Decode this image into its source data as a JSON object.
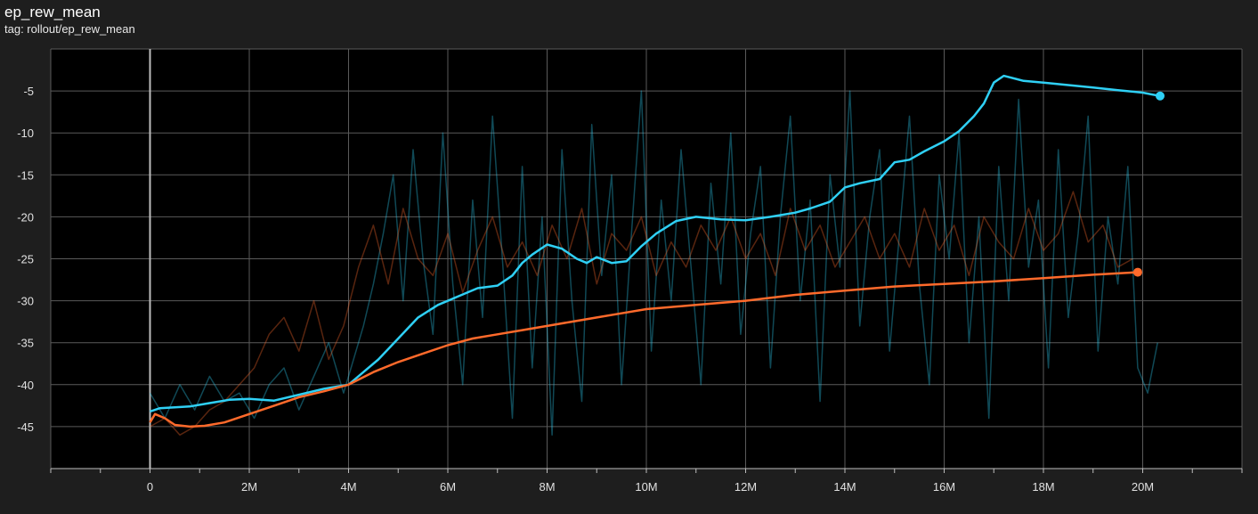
{
  "panel": {
    "title": "ep_rew_mean",
    "tag": "tag: rollout/ep_rew_mean"
  },
  "colors": {
    "background": "#1e1e1e",
    "plot_background": "#000000",
    "grid": "#5a5a5a",
    "series_blue": "#2fd0f5",
    "series_orange": "#ff6a2b"
  },
  "chart_data": {
    "type": "line",
    "title": "ep_rew_mean",
    "xlabel": "",
    "ylabel": "",
    "xlim": [
      -2000000,
      22000000
    ],
    "ylim": [
      -50,
      0
    ],
    "x_ticks": [
      0,
      2000000,
      4000000,
      6000000,
      8000000,
      10000000,
      12000000,
      14000000,
      16000000,
      18000000,
      20000000
    ],
    "x_tick_labels": [
      "0",
      "2M",
      "4M",
      "6M",
      "8M",
      "10M",
      "12M",
      "14M",
      "16M",
      "18M",
      "20M"
    ],
    "y_ticks": [
      -5,
      -10,
      -15,
      -20,
      -25,
      -30,
      -35,
      -40,
      -45
    ],
    "y_tick_labels": [
      "-5",
      "-10",
      "-15",
      "-20",
      "-25",
      "-30",
      "-35",
      "-40",
      "-45"
    ],
    "grid": true,
    "legend": "none",
    "series": [
      {
        "color": "#2fd0f5",
        "smoothed": {
          "x": [
            0,
            200000,
            500000,
            800000,
            1200000,
            1600000,
            2000000,
            2500000,
            3000000,
            3500000,
            4000000,
            4300000,
            4600000,
            5000000,
            5400000,
            5800000,
            6200000,
            6600000,
            7000000,
            7300000,
            7500000,
            7700000,
            8000000,
            8300000,
            8600000,
            8800000,
            9000000,
            9300000,
            9600000,
            9900000,
            10200000,
            10600000,
            11000000,
            11500000,
            12000000,
            12500000,
            13000000,
            13300000,
            13700000,
            14000000,
            14300000,
            14700000,
            15000000,
            15300000,
            15600000,
            16000000,
            16300000,
            16600000,
            16800000,
            17000000,
            17200000,
            17600000,
            18000000,
            18500000,
            19000000,
            19500000,
            20000000,
            20350000
          ],
          "y": [
            -43.2,
            -42.8,
            -42.7,
            -42.6,
            -42.2,
            -41.8,
            -41.7,
            -41.9,
            -41.2,
            -40.5,
            -40.0,
            -38.5,
            -37.0,
            -34.5,
            -32.0,
            -30.5,
            -29.5,
            -28.5,
            -28.2,
            -27.0,
            -25.5,
            -24.5,
            -23.3,
            -23.8,
            -25.0,
            -25.5,
            -24.8,
            -25.5,
            -25.3,
            -23.5,
            -22.0,
            -20.5,
            -20.0,
            -20.3,
            -20.4,
            -20.0,
            -19.5,
            -19.0,
            -18.2,
            -16.5,
            -16.0,
            -15.5,
            -13.5,
            -13.2,
            -12.2,
            -11.0,
            -9.8,
            -8.0,
            -6.5,
            -4.0,
            -3.2,
            -3.8,
            -4.0,
            -4.3,
            -4.6,
            -4.9,
            -5.2,
            -5.6
          ]
        },
        "raw": {
          "x": [
            0,
            300000,
            600000,
            900000,
            1200000,
            1500000,
            1800000,
            2100000,
            2400000,
            2700000,
            3000000,
            3300000,
            3600000,
            3900000,
            4100000,
            4300000,
            4500000,
            4700000,
            4900000,
            5100000,
            5300000,
            5500000,
            5700000,
            5900000,
            6100000,
            6300000,
            6500000,
            6700000,
            6900000,
            7100000,
            7300000,
            7500000,
            7700000,
            7900000,
            8100000,
            8300000,
            8500000,
            8700000,
            8900000,
            9100000,
            9300000,
            9500000,
            9700000,
            9900000,
            10100000,
            10300000,
            10500000,
            10700000,
            10900000,
            11100000,
            11300000,
            11500000,
            11700000,
            11900000,
            12100000,
            12300000,
            12500000,
            12700000,
            12900000,
            13100000,
            13300000,
            13500000,
            13700000,
            13900000,
            14100000,
            14300000,
            14500000,
            14700000,
            14900000,
            15100000,
            15300000,
            15500000,
            15700000,
            15900000,
            16100000,
            16300000,
            16500000,
            16700000,
            16900000,
            17100000,
            17300000,
            17500000,
            17700000,
            17900000,
            18100000,
            18300000,
            18500000,
            18700000,
            18900000,
            19100000,
            19300000,
            19500000,
            19700000,
            19900000,
            20100000,
            20300000
          ],
          "y": [
            -41,
            -44,
            -40,
            -43,
            -39,
            -42,
            -41,
            -44,
            -40,
            -38,
            -43,
            -39,
            -35,
            -41,
            -37,
            -33,
            -28,
            -22,
            -15,
            -30,
            -12,
            -25,
            -34,
            -10,
            -28,
            -40,
            -18,
            -32,
            -8,
            -25,
            -44,
            -14,
            -38,
            -20,
            -46,
            -12,
            -30,
            -42,
            -9,
            -27,
            -15,
            -40,
            -22,
            -5,
            -36,
            -18,
            -30,
            -12,
            -26,
            -40,
            -16,
            -28,
            -10,
            -34,
            -22,
            -14,
            -38,
            -20,
            -8,
            -30,
            -18,
            -42,
            -15,
            -26,
            -5,
            -33,
            -20,
            -12,
            -36,
            -22,
            -8,
            -28,
            -40,
            -15,
            -25,
            -10,
            -35,
            -20,
            -44,
            -14,
            -30,
            -6,
            -26,
            -18,
            -38,
            -12,
            -32,
            -22,
            -8,
            -36,
            -20,
            -28,
            -14,
            -38,
            -41,
            -35
          ]
        }
      },
      {
        "color": "#ff6a2b",
        "smoothed": {
          "x": [
            0,
            100000,
            300000,
            500000,
            800000,
            1100000,
            1500000,
            2000000,
            2500000,
            3000000,
            3500000,
            4000000,
            4500000,
            5000000,
            5500000,
            6000000,
            6500000,
            7000000,
            7500000,
            8000000,
            8500000,
            9000000,
            9500000,
            10000000,
            11000000,
            12000000,
            13000000,
            14000000,
            15000000,
            16000000,
            17000000,
            18000000,
            19000000,
            19900000
          ],
          "y": [
            -44.5,
            -43.5,
            -44.0,
            -44.8,
            -45.0,
            -44.9,
            -44.5,
            -43.5,
            -42.5,
            -41.5,
            -40.8,
            -40.0,
            -38.5,
            -37.3,
            -36.3,
            -35.3,
            -34.5,
            -34.0,
            -33.5,
            -33.0,
            -32.5,
            -32.0,
            -31.5,
            -31.0,
            -30.5,
            -30.0,
            -29.3,
            -28.8,
            -28.3,
            -28.0,
            -27.7,
            -27.3,
            -26.9,
            -26.6
          ]
        },
        "raw": {
          "x": [
            0,
            300000,
            600000,
            900000,
            1200000,
            1500000,
            1800000,
            2100000,
            2400000,
            2700000,
            3000000,
            3300000,
            3600000,
            3900000,
            4200000,
            4500000,
            4800000,
            5100000,
            5400000,
            5700000,
            6000000,
            6300000,
            6600000,
            6900000,
            7200000,
            7500000,
            7800000,
            8100000,
            8400000,
            8700000,
            9000000,
            9300000,
            9600000,
            9900000,
            10200000,
            10500000,
            10800000,
            11100000,
            11400000,
            11700000,
            12000000,
            12300000,
            12600000,
            12900000,
            13200000,
            13500000,
            13800000,
            14100000,
            14400000,
            14700000,
            15000000,
            15300000,
            15600000,
            15900000,
            16200000,
            16500000,
            16800000,
            17100000,
            17400000,
            17700000,
            18000000,
            18300000,
            18600000,
            18900000,
            19200000,
            19500000,
            19800000
          ],
          "y": [
            -45,
            -44,
            -46,
            -45,
            -43,
            -42,
            -40,
            -38,
            -34,
            -32,
            -36,
            -30,
            -37,
            -33,
            -26,
            -21,
            -28,
            -19,
            -25,
            -27,
            -22,
            -29,
            -24,
            -20,
            -26,
            -23,
            -27,
            -21,
            -25,
            -19,
            -28,
            -22,
            -24,
            -20,
            -27,
            -23,
            -26,
            -21,
            -24,
            -20,
            -25,
            -22,
            -27,
            -19,
            -24,
            -21,
            -26,
            -23,
            -20,
            -25,
            -22,
            -26,
            -19,
            -24,
            -21,
            -27,
            -20,
            -23,
            -25,
            -19,
            -24,
            -22,
            -17,
            -23,
            -21,
            -26,
            -25
          ]
        }
      }
    ]
  }
}
